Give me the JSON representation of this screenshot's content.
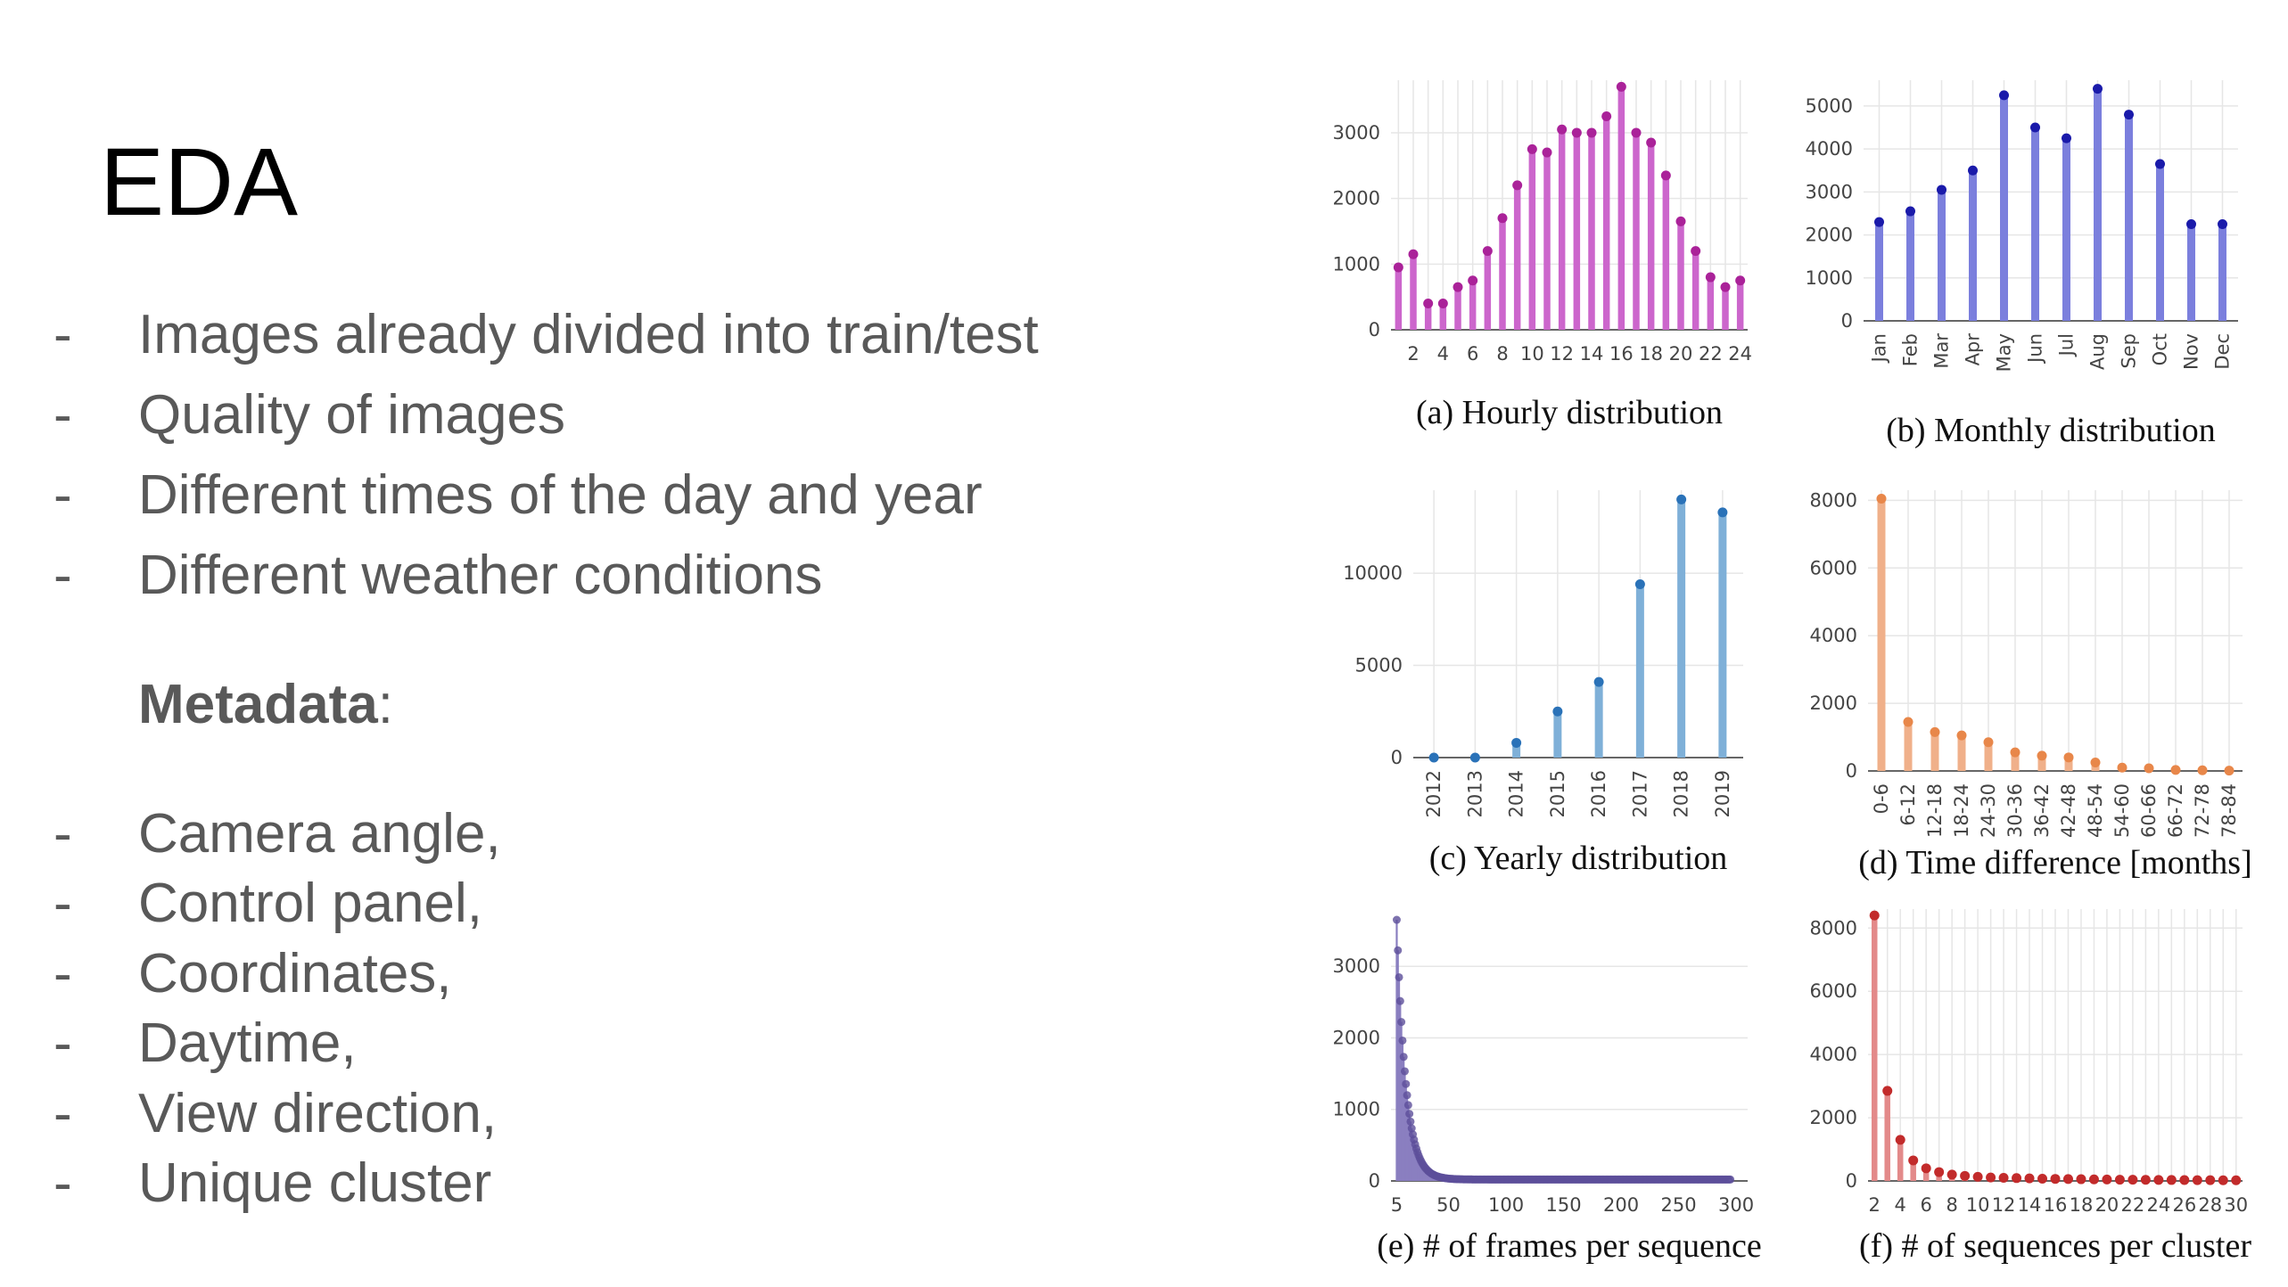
{
  "slide": {
    "title": "EDA",
    "bullets": [
      "Images already divided into train/test",
      "Quality of images",
      "Different times of the day and year",
      "Different weather conditions"
    ],
    "metadata_label": "Metadata",
    "metadata_colon": ":",
    "metadata_items": [
      "Camera angle,",
      "Control panel,",
      "Coordinates,",
      "Daytime,",
      "View direction,",
      "Unique cluster"
    ],
    "dash": "-"
  },
  "chart_data": [
    {
      "type": "bar",
      "title": "(a) Hourly distribution",
      "categories": [
        "1",
        "2",
        "3",
        "4",
        "5",
        "6",
        "7",
        "8",
        "9",
        "10",
        "11",
        "12",
        "13",
        "14",
        "15",
        "16",
        "17",
        "18",
        "19",
        "20",
        "21",
        "22",
        "23",
        "24"
      ],
      "x_tick_labels": [
        "2",
        "4",
        "6",
        "8",
        "10",
        "12",
        "14",
        "16",
        "18",
        "20",
        "22",
        "24"
      ],
      "values": [
        950,
        1150,
        400,
        400,
        650,
        750,
        1200,
        1700,
        2200,
        2750,
        2700,
        3050,
        3000,
        3000,
        3250,
        3700,
        3000,
        2850,
        2350,
        1650,
        1200,
        800,
        650,
        750
      ],
      "yticks": [
        0,
        1000,
        2000,
        3000
      ],
      "ylim": [
        0,
        3800
      ],
      "color": "#cc66cc",
      "dot_color": "#aa2299"
    },
    {
      "type": "bar",
      "title": "(b) Monthly distribution",
      "categories": [
        "Jan",
        "Feb",
        "Mar",
        "Apr",
        "May",
        "Jun",
        "Jul",
        "Aug",
        "Sep",
        "Oct",
        "Nov",
        "Dec"
      ],
      "values": [
        2300,
        2550,
        3050,
        3500,
        5250,
        4500,
        4250,
        5400,
        4800,
        3650,
        2250,
        2250
      ],
      "yticks": [
        0,
        1000,
        2000,
        3000,
        4000,
        5000
      ],
      "ylim": [
        0,
        5600
      ],
      "color": "#7b7fdd",
      "dot_color": "#1a1aaa"
    },
    {
      "type": "bar",
      "title": "(c) Yearly distribution",
      "categories": [
        "2012",
        "2013",
        "2014",
        "2015",
        "2016",
        "2017",
        "2018",
        "2019"
      ],
      "values": [
        0,
        0,
        800,
        2500,
        4100,
        9400,
        14000,
        13300
      ],
      "yticks": [
        0,
        5000,
        10000
      ],
      "ylim": [
        0,
        14500
      ],
      "color": "#7fb0d8",
      "dot_color": "#2a72b8"
    },
    {
      "type": "bar",
      "title": "(d) Time difference [months]",
      "categories": [
        "0-6",
        "6-12",
        "12-18",
        "18-24",
        "24-30",
        "30-36",
        "36-42",
        "42-48",
        "48-54",
        "54-60",
        "60-66",
        "66-72",
        "72-78",
        "78-84"
      ],
      "values": [
        8050,
        1450,
        1150,
        1050,
        850,
        550,
        450,
        400,
        250,
        100,
        80,
        30,
        20,
        10
      ],
      "yticks": [
        0,
        2000,
        4000,
        6000,
        8000
      ],
      "ylim": [
        0,
        8300
      ],
      "color": "#f0b08a",
      "dot_color": "#e8874a"
    },
    {
      "type": "bar",
      "title": "(e) # of frames per sequence",
      "x_tick_labels": [
        "5",
        "50",
        "100",
        "150",
        "200",
        "250",
        "300"
      ],
      "x_tick_values": [
        5,
        50,
        100,
        150,
        200,
        250,
        300
      ],
      "xlim": [
        0,
        310
      ],
      "x_start": 5,
      "x_end": 295,
      "decay": {
        "peak": 3650,
        "scale": 8.0,
        "floor": 20
      },
      "yticks": [
        0,
        1000,
        2000,
        3000
      ],
      "ylim": [
        0,
        3800
      ],
      "color": "#8a7fc0",
      "dot_color": "#5c4f9a"
    },
    {
      "type": "bar",
      "title": "(f) # of sequences per cluster",
      "categories": [
        "2",
        "3",
        "4",
        "5",
        "6",
        "7",
        "8",
        "9",
        "10",
        "11",
        "12",
        "13",
        "14",
        "15",
        "16",
        "17",
        "18",
        "19",
        "20",
        "21",
        "22",
        "23",
        "24",
        "25",
        "26",
        "27",
        "28",
        "29",
        "30"
      ],
      "x_tick_labels": [
        "2",
        "4",
        "6",
        "8",
        "10",
        "12",
        "14",
        "16",
        "18",
        "20",
        "22",
        "24",
        "26",
        "28",
        "30"
      ],
      "values": [
        8400,
        2850,
        1300,
        650,
        400,
        280,
        200,
        160,
        130,
        110,
        100,
        90,
        80,
        70,
        65,
        60,
        55,
        50,
        45,
        40,
        38,
        35,
        32,
        30,
        28,
        26,
        24,
        22,
        20
      ],
      "yticks": [
        0,
        2000,
        4000,
        6000,
        8000
      ],
      "ylim": [
        0,
        8600
      ],
      "color": "#e38a8a",
      "dot_color": "#c22b2b"
    }
  ]
}
